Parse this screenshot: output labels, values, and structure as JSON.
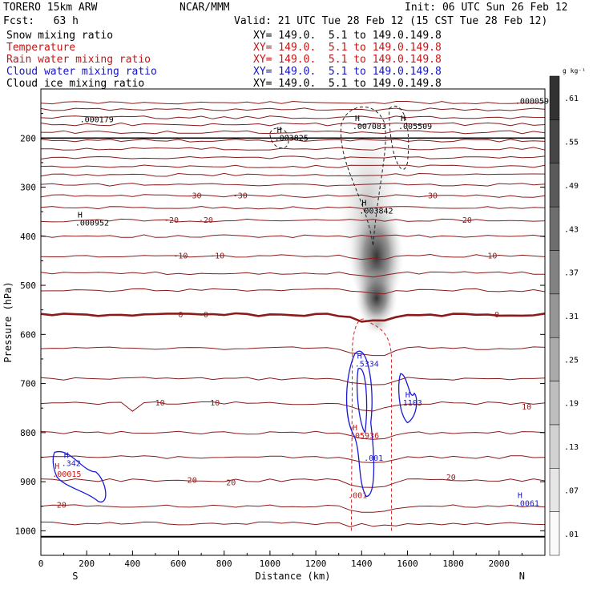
{
  "header": {
    "model": "TORERO 15km ARW",
    "org": "NCAR/MMM",
    "init": "Init: 06 UTC Sun 26 Feb 12",
    "fcst": "Fcst:   63 h",
    "valid": "Valid: 21 UTC Tue 28 Feb 12 (15 CST Tue 28 Feb 12)",
    "fields": [
      {
        "name": "Snow mixing ratio",
        "xy": "XY= 149.0.  5.1 to 149.0.149.8",
        "color": "#000000"
      },
      {
        "name": "Temperature",
        "xy": "XY= 149.0.  5.1 to 149.0.149.8",
        "color": "#c81414"
      },
      {
        "name": "Rain water mixing ratio",
        "xy": "XY= 149.0.  5.1 to 149.0.149.8",
        "color": "#c81414"
      },
      {
        "name": "Cloud water mixing ratio",
        "xy": "XY= 149.0.  5.1 to 149.0.149.8",
        "color": "#1414c8"
      },
      {
        "name": "Cloud ice mixing ratio",
        "xy": "XY= 149.0.  5.1 to 149.0.149.8",
        "color": "#000000"
      }
    ]
  },
  "chart_data": {
    "type": "contour-cross-section",
    "xlabel": "Distance (km)",
    "ylabel": "Pressure (hPa)",
    "xlim": [
      0,
      2200
    ],
    "ylim": [
      1050,
      100
    ],
    "x_ticks": [
      "0",
      "200",
      "400",
      "600",
      "800",
      "1000",
      "1200",
      "1400",
      "1600",
      "1800",
      "2000"
    ],
    "y_ticks": [
      "200",
      "300",
      "400",
      "500",
      "600",
      "700",
      "800",
      "900",
      "1000"
    ],
    "x_end_labels": {
      "left": "S",
      "right": "N"
    },
    "colorbar": {
      "unit": "g kg⁻¹",
      "levels": [
        ".01",
        ".07",
        ".13",
        ".19",
        ".25",
        ".31",
        ".37",
        ".43",
        ".49",
        ".55",
        ".61"
      ]
    },
    "temperature_labels": [
      {
        "x": 670,
        "p": 318,
        "t": "-30"
      },
      {
        "x": 870,
        "p": 318,
        "t": "-30"
      },
      {
        "x": 1700,
        "p": 318,
        "t": "-30"
      },
      {
        "x": 570,
        "p": 368,
        "t": "-20"
      },
      {
        "x": 720,
        "p": 368,
        "t": "-20"
      },
      {
        "x": 1850,
        "p": 368,
        "t": "-20"
      },
      {
        "x": 610,
        "p": 440,
        "t": "-10"
      },
      {
        "x": 770,
        "p": 440,
        "t": "-10"
      },
      {
        "x": 1960,
        "p": 440,
        "t": "-10"
      },
      {
        "x": 610,
        "p": 560,
        "t": "0"
      },
      {
        "x": 720,
        "p": 560,
        "t": "0"
      },
      {
        "x": 1990,
        "p": 560,
        "t": "0"
      },
      {
        "x": 520,
        "p": 740,
        "t": "10"
      },
      {
        "x": 760,
        "p": 740,
        "t": "10"
      },
      {
        "x": 2120,
        "p": 748,
        "t": "10"
      },
      {
        "x": 660,
        "p": 897,
        "t": "20"
      },
      {
        "x": 830,
        "p": 902,
        "t": "20"
      },
      {
        "x": 1790,
        "p": 892,
        "t": "20"
      },
      {
        "x": 90,
        "p": 948,
        "t": "20"
      }
    ],
    "extrema": [
      {
        "field": "snow",
        "x": 170,
        "p": 168,
        "label": ".000179",
        "h": false
      },
      {
        "field": "snow",
        "x": 1020,
        "p": 205,
        "label": ".003825",
        "h": true
      },
      {
        "field": "snow",
        "x": 1360,
        "p": 182,
        "label": ".007083",
        "h": true
      },
      {
        "field": "snow",
        "x": 1560,
        "p": 182,
        "label": ".005509",
        "h": true
      },
      {
        "field": "snow",
        "x": 1390,
        "p": 354,
        "label": ".003842",
        "h": true
      },
      {
        "field": "snow",
        "x": 150,
        "p": 378,
        "label": ".000952",
        "h": true
      },
      {
        "field": "snow",
        "x": 2070,
        "p": 130,
        "label": ".000059",
        "h": false
      },
      {
        "field": "cloud",
        "x": 1370,
        "p": 666,
        "label": ".5334",
        "h": true
      },
      {
        "field": "cloud",
        "x": 1580,
        "p": 745,
        "label": "1103",
        "h": true
      },
      {
        "field": "cloud",
        "x": 1410,
        "p": 857,
        "label": ".001",
        "h": false
      },
      {
        "field": "cloud",
        "x": 2070,
        "p": 950,
        "label": ".0061",
        "h": true
      },
      {
        "field": "cloud",
        "x": 90,
        "p": 868,
        "label": ".342",
        "h": true
      },
      {
        "field": "rain",
        "x": 1350,
        "p": 812,
        "label": ".05936",
        "h": true
      },
      {
        "field": "rain",
        "x": 50,
        "p": 890,
        "label": ".00015",
        "h": true
      },
      {
        "field": "rain",
        "x": 1340,
        "p": 933,
        "label": ".001",
        "h": false
      }
    ]
  }
}
